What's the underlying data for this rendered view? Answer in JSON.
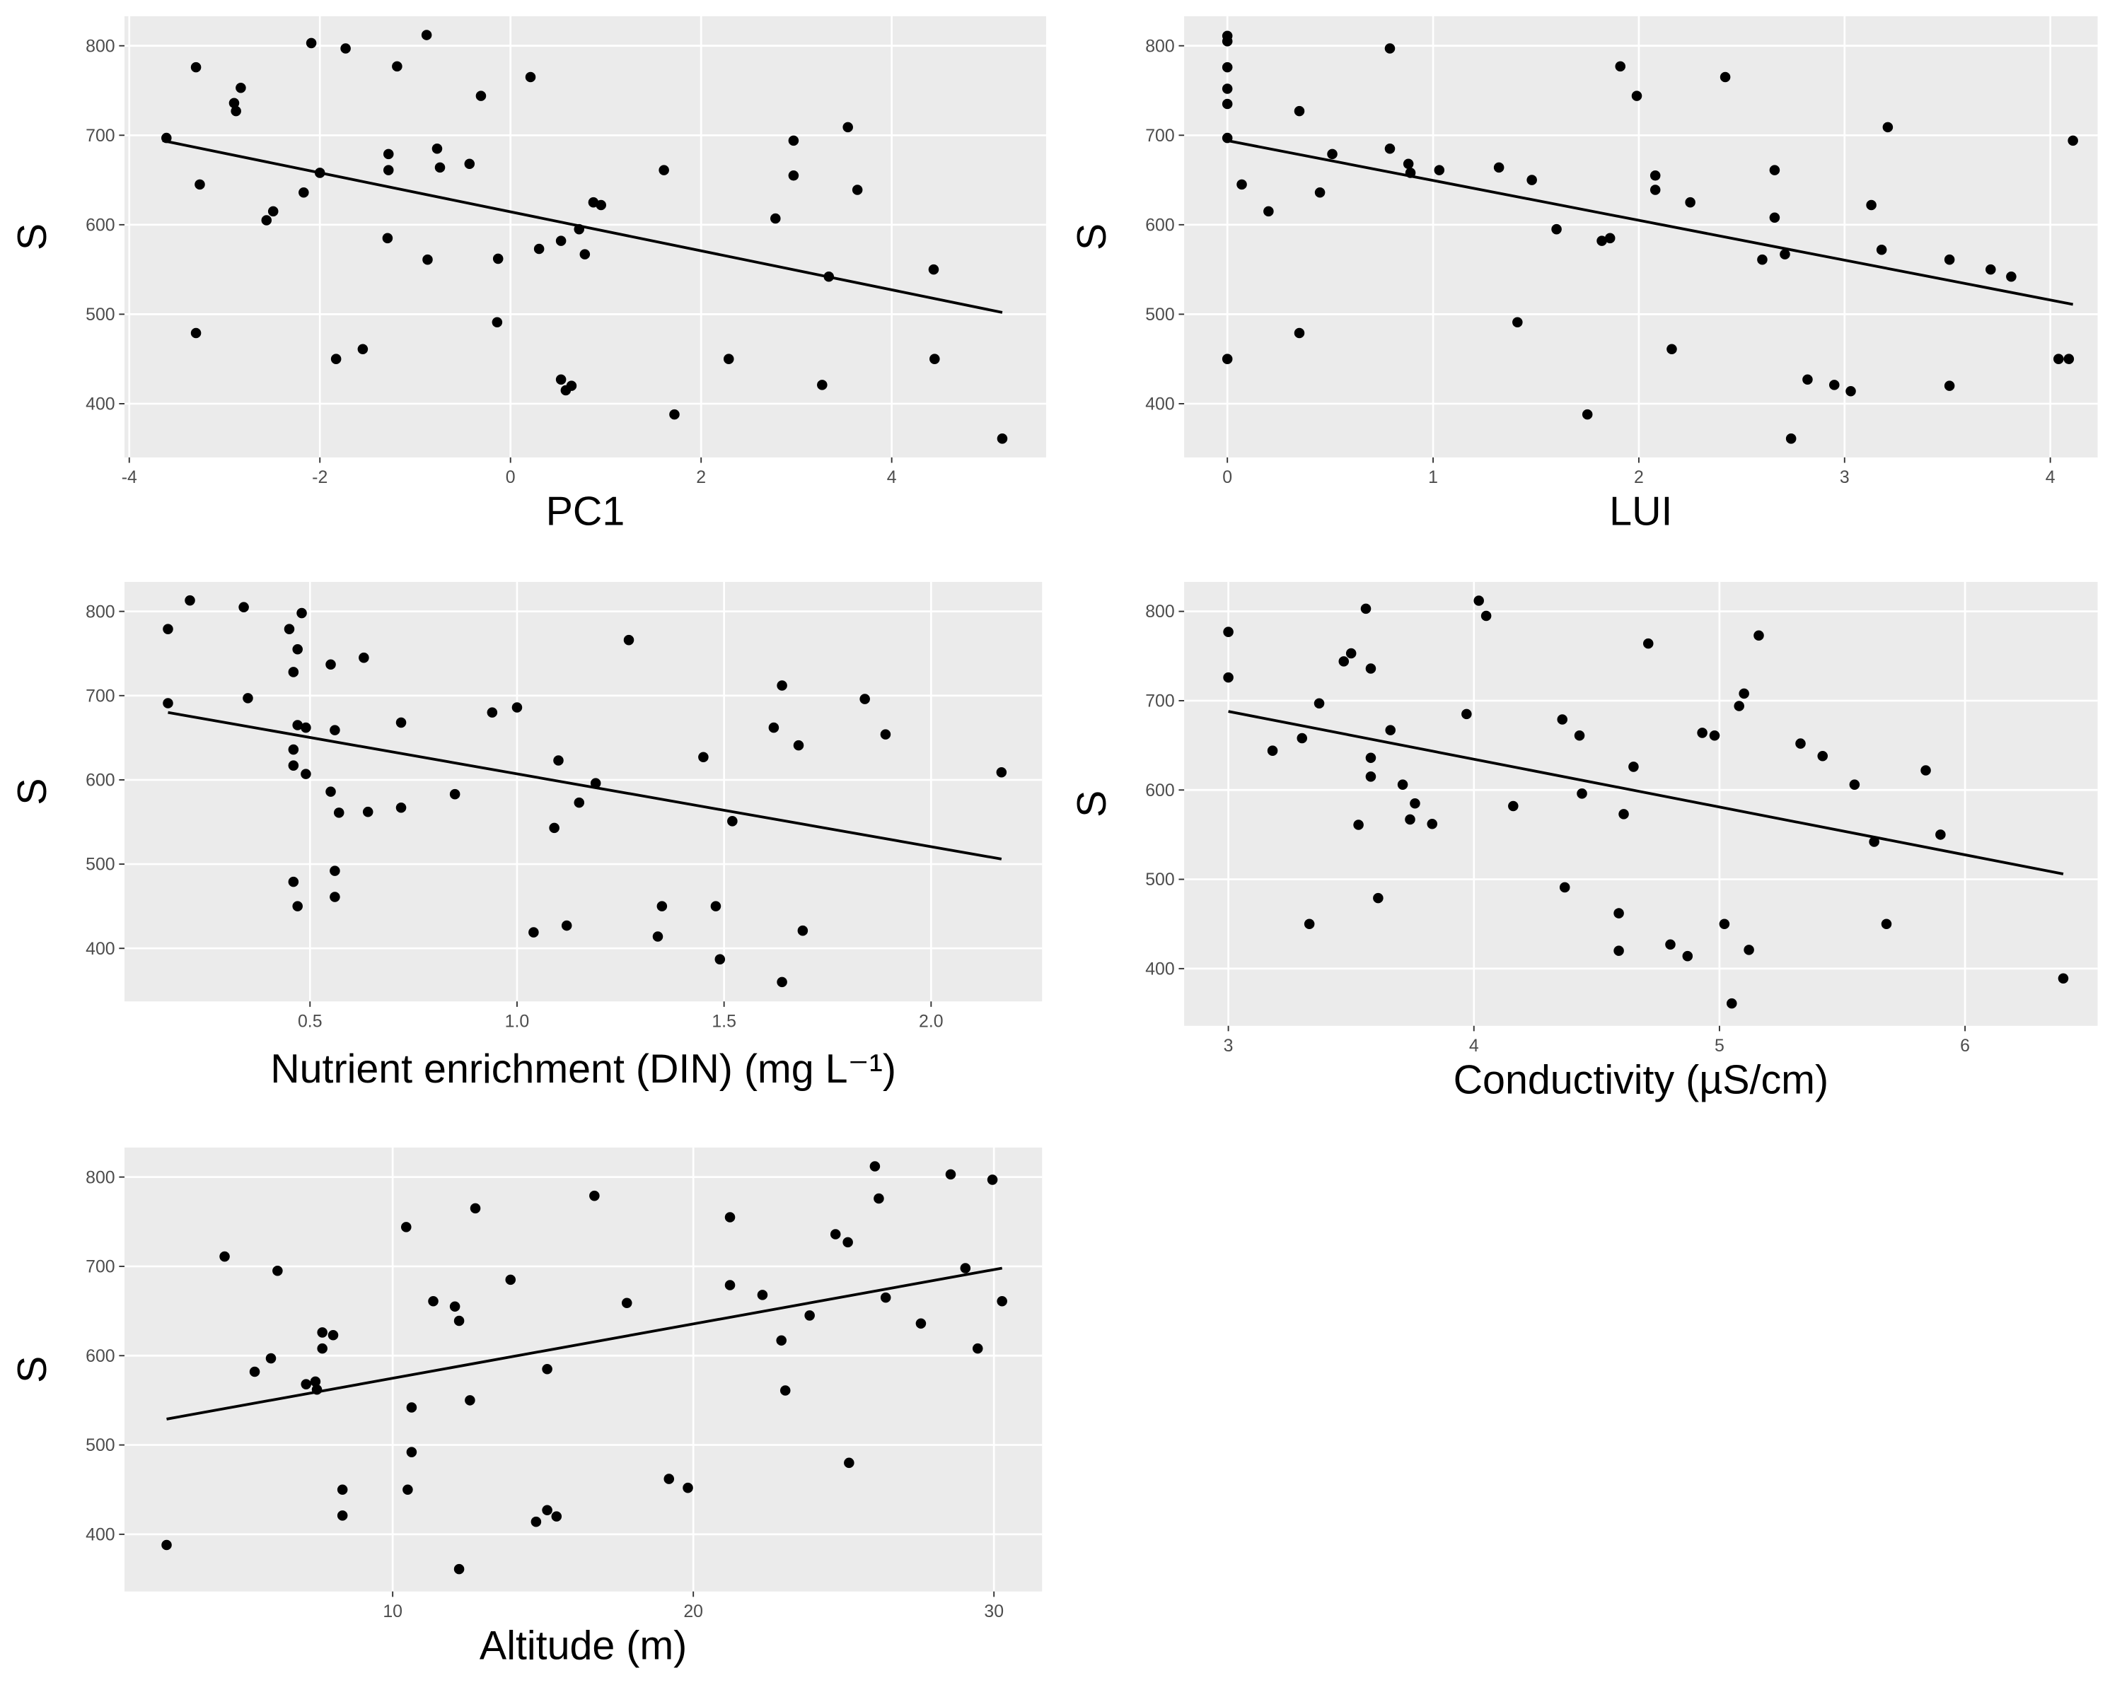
{
  "chart_data": [
    {
      "type": "scatter",
      "x_label": "PC1",
      "y_label": "S",
      "color": "#000000",
      "xlim": [
        -4.05,
        5.62
      ],
      "ylim": [
        340,
        833
      ],
      "xticks": [
        -4,
        -2,
        0,
        2,
        4
      ],
      "yticks": [
        400,
        500,
        600,
        700,
        800
      ],
      "grid": true,
      "x": [
        -3.61,
        -3.3,
        -3.26,
        -3.3,
        -2.9,
        -2.88,
        -2.83,
        -2.56,
        -2.49,
        -2.17,
        -2.09,
        -2.0,
        -1.83,
        -1.73,
        -1.55,
        -1.19,
        -1.28,
        -1.28,
        -1.29,
        -0.88,
        -0.87,
        -0.77,
        -0.74,
        -0.43,
        -0.31,
        -0.14,
        -0.13,
        0.21,
        0.3,
        0.53,
        0.53,
        0.58,
        0.64,
        0.72,
        0.78,
        0.87,
        0.95,
        1.61,
        1.72,
        2.29,
        2.78,
        2.97,
        2.97,
        3.27,
        3.34,
        3.54,
        3.64,
        4.44,
        4.45,
        5.16
      ],
      "values": [
        697,
        776,
        645,
        479,
        736,
        727,
        753,
        605,
        615,
        636,
        803,
        658,
        450,
        797,
        461,
        777,
        679,
        661,
        585,
        812,
        561,
        685,
        664,
        668,
        744,
        491,
        562,
        765,
        573,
        582,
        427,
        415,
        420,
        595,
        567,
        625,
        622,
        661,
        388,
        450,
        607,
        694,
        655,
        421,
        542,
        709,
        639,
        550,
        450,
        361
      ],
      "trend": {
        "x": [
          -3.65,
          5.16
        ],
        "values": [
          694,
          502
        ]
      }
    },
    {
      "type": "scatter",
      "x_label": "LUI",
      "y_label": "S",
      "color": "#000000",
      "xlim": [
        -0.21,
        4.23
      ],
      "ylim": [
        340,
        833
      ],
      "xticks": [
        0,
        1,
        2,
        3,
        4
      ],
      "yticks": [
        400,
        500,
        600,
        700,
        800
      ],
      "grid": true,
      "x": [
        0,
        0,
        0,
        0,
        0,
        0,
        0,
        0.07,
        0.2,
        0.35,
        0.35,
        0.45,
        0.51,
        0.79,
        0.79,
        0.88,
        0.89,
        1.03,
        1.32,
        1.41,
        1.48,
        1.6,
        1.75,
        1.82,
        1.86,
        1.91,
        1.99,
        2.08,
        2.08,
        2.16,
        2.25,
        2.42,
        2.6,
        2.66,
        2.66,
        2.71,
        2.74,
        2.82,
        2.95,
        3.03,
        3.13,
        3.18,
        3.21,
        3.51,
        3.51,
        3.71,
        3.81,
        4.04,
        4.09,
        4.11
      ],
      "values": [
        811,
        805,
        776,
        752,
        735,
        697,
        450,
        645,
        615,
        727,
        479,
        636,
        679,
        797,
        685,
        668,
        658,
        661,
        664,
        491,
        650,
        595,
        388,
        582,
        585,
        777,
        744,
        655,
        639,
        461,
        625,
        765,
        561,
        661,
        608,
        567,
        361,
        427,
        421,
        414,
        622,
        572,
        709,
        561,
        420,
        550,
        542,
        450,
        450,
        694
      ],
      "trend": {
        "x": [
          0,
          4.11
        ],
        "values": [
          694,
          511
        ]
      }
    },
    {
      "type": "scatter",
      "x_label": "Nutrient enrichment (DIN) (mg L⁻¹)",
      "y_label": "S",
      "color": "#000000",
      "xlim": [
        0.052,
        2.268
      ],
      "ylim": [
        337,
        835
      ],
      "xticks": [
        0.5,
        {
          "value": 1,
          "label": "1.0"
        },
        1.5,
        {
          "value": 2,
          "label": "2.0"
        }
      ],
      "yticks": [
        400,
        500,
        600,
        700,
        800
      ],
      "grid": true,
      "x": [
        0.157,
        0.157,
        0.21,
        0.34,
        0.35,
        0.45,
        0.46,
        0.47,
        0.48,
        0.46,
        0.46,
        0.47,
        0.49,
        0.49,
        0.46,
        0.47,
        0.55,
        0.55,
        0.56,
        0.57,
        0.56,
        0.56,
        0.63,
        0.64,
        0.72,
        0.72,
        0.85,
        0.94,
        1.0,
        1.04,
        1.09,
        1.1,
        1.12,
        1.15,
        1.19,
        1.27,
        1.34,
        1.35,
        1.45,
        1.48,
        1.49,
        1.52,
        1.62,
        1.64,
        1.64,
        1.68,
        1.69,
        1.84,
        1.89,
        2.17
      ],
      "values": [
        779,
        691,
        813,
        805,
        697,
        779,
        728,
        755,
        798,
        636,
        617,
        665,
        662,
        607,
        479,
        450,
        737,
        586,
        659,
        561,
        492,
        461,
        745,
        562,
        668,
        567,
        583,
        680,
        686,
        419,
        543,
        623,
        427,
        573,
        596,
        766,
        414,
        450,
        627,
        450,
        387,
        551,
        662,
        712,
        360,
        641,
        421,
        696,
        654,
        609
      ],
      "trend": {
        "x": [
          0.157,
          2.17
        ],
        "values": [
          680,
          506
        ]
      }
    },
    {
      "type": "scatter",
      "x_label": "Conductivity (µS/cm)",
      "y_label": "S",
      "color": "#000000",
      "xlim": [
        2.82,
        6.54
      ],
      "ylim": [
        336,
        833
      ],
      "xticks": [
        3,
        4,
        5,
        6
      ],
      "yticks": [
        400,
        500,
        600,
        700,
        800
      ],
      "grid": true,
      "x": [
        3.0,
        3.0,
        3.18,
        3.3,
        3.33,
        3.37,
        3.47,
        3.5,
        3.56,
        3.58,
        3.53,
        3.58,
        3.58,
        3.61,
        3.66,
        3.71,
        3.74,
        3.76,
        3.83,
        3.97,
        4.02,
        4.05,
        4.16,
        4.36,
        4.37,
        4.43,
        4.44,
        4.59,
        4.59,
        4.61,
        4.65,
        4.71,
        4.8,
        4.87,
        4.93,
        4.98,
        5.02,
        5.05,
        5.08,
        5.1,
        5.12,
        5.16,
        5.33,
        5.42,
        5.55,
        5.63,
        5.68,
        5.84,
        5.9,
        6.4
      ],
      "values": [
        777,
        726,
        644,
        658,
        450,
        697,
        744,
        753,
        803,
        736,
        561,
        636,
        615,
        479,
        667,
        606,
        567,
        585,
        562,
        685,
        812,
        795,
        582,
        679,
        491,
        661,
        596,
        462,
        420,
        573,
        626,
        764,
        427,
        414,
        664,
        661,
        450,
        361,
        694,
        708,
        421,
        773,
        652,
        638,
        606,
        542,
        450,
        622,
        550,
        389
      ],
      "trend": {
        "x": [
          3.0,
          6.4
        ],
        "values": [
          688,
          506
        ]
      }
    },
    {
      "type": "scatter",
      "x_label": "Altitude (m)",
      "y_label": "S",
      "color": "#000000",
      "xlim": [
        1.08,
        31.6
      ],
      "ylim": [
        336,
        833
      ],
      "xticks": [
        10,
        20,
        30
      ],
      "yticks": [
        400,
        500,
        600,
        700,
        800
      ],
      "grid": true,
      "x": [
        2.48,
        4.41,
        5.41,
        5.95,
        6.17,
        7.12,
        7.43,
        7.48,
        7.66,
        7.66,
        8.02,
        8.33,
        8.33,
        10.45,
        10.5,
        10.63,
        10.63,
        11.35,
        12.07,
        12.21,
        12.21,
        12.57,
        12.75,
        13.92,
        14.77,
        15.14,
        15.14,
        15.45,
        16.71,
        17.79,
        19.19,
        19.82,
        21.22,
        21.22,
        22.3,
        22.93,
        23.06,
        23.87,
        24.73,
        25.14,
        25.18,
        26.04,
        26.17,
        26.4,
        27.57,
        28.56,
        29.05,
        29.46,
        29.95,
        30.27
      ],
      "values": [
        388,
        711,
        582,
        597,
        695,
        568,
        571,
        562,
        626,
        608,
        623,
        450,
        421,
        744,
        450,
        542,
        492,
        661,
        655,
        639,
        361,
        550,
        765,
        685,
        414,
        427,
        585,
        420,
        779,
        659,
        462,
        452,
        755,
        679,
        668,
        617,
        561,
        645,
        736,
        727,
        480,
        812,
        776,
        665,
        636,
        803,
        698,
        608,
        797,
        661
      ],
      "trend": {
        "x": [
          2.48,
          30.27
        ],
        "values": [
          529,
          698
        ]
      }
    }
  ]
}
